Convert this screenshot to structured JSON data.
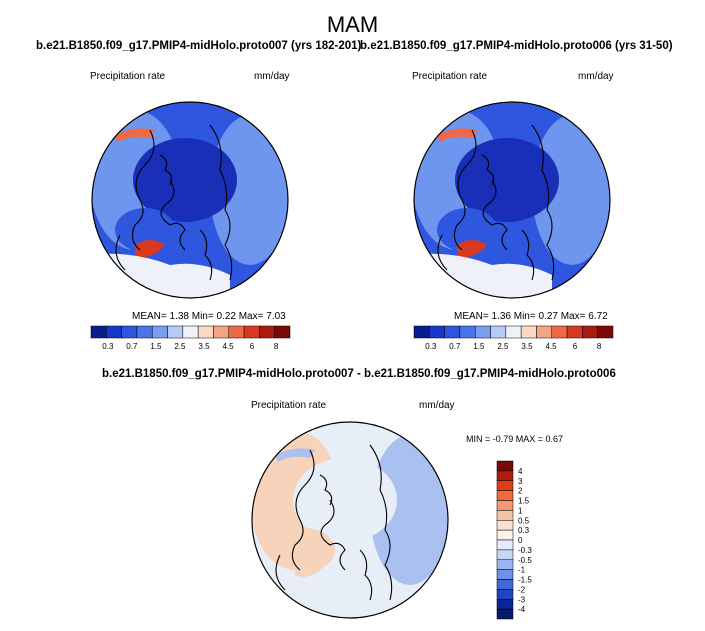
{
  "figure": {
    "title": "MAM",
    "panel_left_title": "b.e21.B1850.f09_g17.PMIP4-midHolo.proto007 (yrs 182-201)",
    "panel_right_title": "b.e21.B1850.f09_g17.PMIP4-midHolo.proto006 (yrs 31-50)",
    "panel_diff_title": "b.e21.B1850.f09_g17.PMIP4-midHolo.proto007 - b.e21.B1850.f09_g17.PMIP4-midHolo.proto006",
    "variable_label": "Precipitation rate",
    "units_label": "mm/day"
  },
  "chart_data": [
    {
      "type": "heatmap",
      "projection": "polar stereographic (north pole)",
      "title": "b.e21.B1850.f09_g17.PMIP4-midHolo.proto007 (yrs 182-201)",
      "variable": "Precipitation rate",
      "units": "mm/day",
      "stats_text": "MEAN=   1.38  Min=   0.22  Max=   7.03",
      "mean": 1.38,
      "min": 0.22,
      "max": 7.03,
      "colorbar_levels": [
        0.3,
        0.7,
        1.5,
        2.5,
        3.5,
        4.5,
        6,
        8
      ],
      "colorbar_tick_labels": [
        "0.3",
        "0.7",
        "1.5",
        "2.5",
        "3.5",
        "4.5",
        "6",
        "8"
      ]
    },
    {
      "type": "heatmap",
      "projection": "polar stereographic (north pole)",
      "title": "b.e21.B1850.f09_g17.PMIP4-midHolo.proto006 (yrs 31-50)",
      "variable": "Precipitation rate",
      "units": "mm/day",
      "stats_text": "MEAN=   1.36  Min=   0.27  Max=   6.72",
      "mean": 1.36,
      "min": 0.27,
      "max": 6.72,
      "colorbar_levels": [
        0.3,
        0.7,
        1.5,
        2.5,
        3.5,
        4.5,
        6,
        8
      ],
      "colorbar_tick_labels": [
        "0.3",
        "0.7",
        "1.5",
        "2.5",
        "3.5",
        "4.5",
        "6",
        "8"
      ]
    },
    {
      "type": "heatmap",
      "projection": "polar stereographic (north pole)",
      "title": "b.e21.B1850.f09_g17.PMIP4-midHolo.proto007 - b.e21.B1850.f09_g17.PMIP4-midHolo.proto006",
      "variable": "Precipitation rate",
      "units": "mm/day",
      "stats_text": "MIN =  -0.79 MAX =   0.67",
      "min": -0.79,
      "max": 0.67,
      "colorbar_levels": [
        4,
        3,
        2,
        1.5,
        1,
        0.5,
        0.3,
        0,
        -0.3,
        -0.5,
        -1,
        -1.5,
        -2,
        -3,
        -4
      ],
      "colorbar_tick_labels": [
        "4",
        "3",
        "2",
        "1.5",
        "1",
        "0.5",
        "0.3",
        "0",
        "-0.3",
        "-0.5",
        "-1",
        "-1.5",
        "-2",
        "-3",
        "-4"
      ]
    }
  ],
  "colors": {
    "seq_scale": [
      "#0a1d8c",
      "#1638c8",
      "#2e55e0",
      "#4a74ec",
      "#7b9ef3",
      "#b6cbf7",
      "#eef2f8",
      "#fbd9c4",
      "#f6a584",
      "#ee6a45",
      "#d93a1f",
      "#a81c10",
      "#7a0a08"
    ],
    "div_scale": [
      "#7a0a08",
      "#b21a0c",
      "#dd3d17",
      "#f06a3a",
      "#f49a72",
      "#f8c3a5",
      "#fbe1d0",
      "#fdf1e8",
      "#e4ecf8",
      "#c6d7f4",
      "#9ab6ef",
      "#6d91e8",
      "#3e6ad9",
      "#1f45c2",
      "#0a2596",
      "#061a6b"
    ],
    "map_dark": "#1a2fb8",
    "map_mid": "#2f56df",
    "map_light": "#6f96ee",
    "diff_bg": "#e8eef8",
    "diff_warm": "#f7d3bb",
    "diff_cool": "#a9c0f0"
  }
}
